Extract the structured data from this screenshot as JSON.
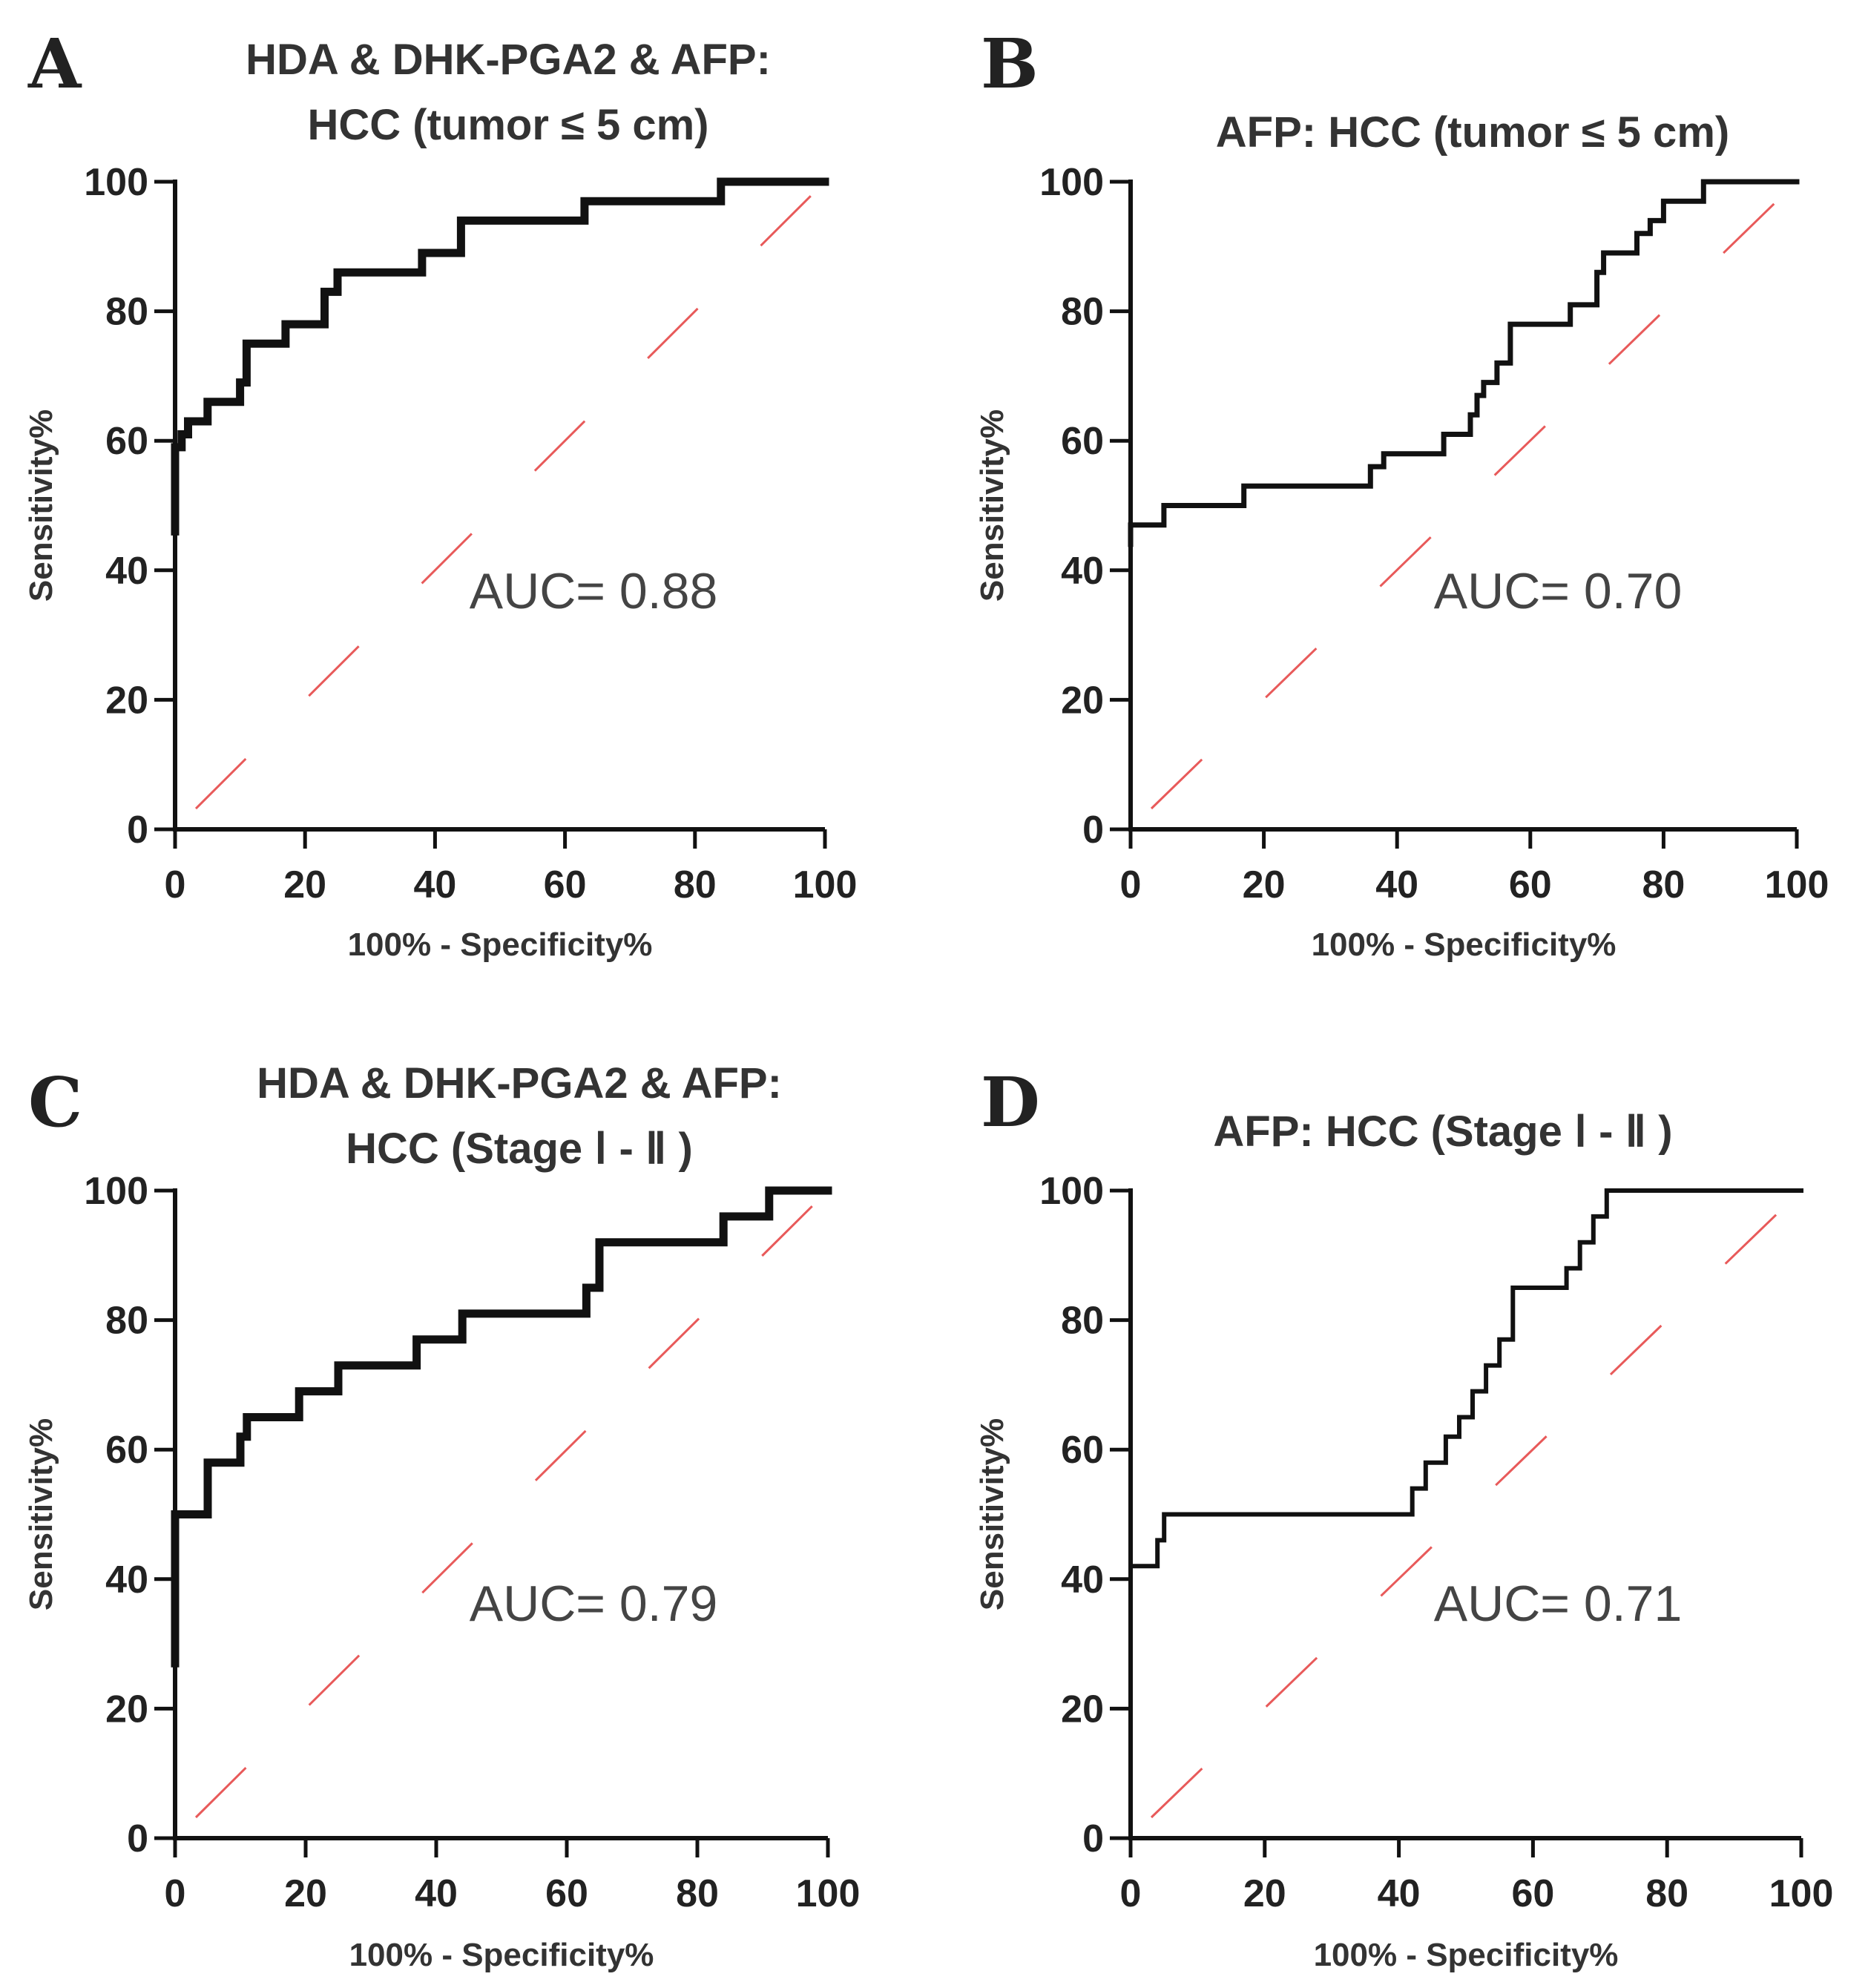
{
  "figure": {
    "type_note": "ROC curves",
    "colors": {
      "curve": "#111111",
      "reference": "#e85a5a",
      "text": "#333333"
    }
  },
  "chart_data": [
    {
      "type": "line",
      "panel": "A",
      "title_lines": [
        "HDA & DHK-PGA2 & AFP:",
        "HCC (tumor ≤ 5 cm)"
      ],
      "xlabel": "100% - Specificity%",
      "ylabel": "Sensitivity%",
      "xlim": [
        0,
        100
      ],
      "ylim": [
        0,
        100
      ],
      "xticks": [
        0,
        20,
        40,
        60,
        80,
        100
      ],
      "yticks": [
        0,
        20,
        40,
        60,
        80,
        100
      ],
      "annotation": "AUC= 0.88",
      "auc": 0.88,
      "series": [
        {
          "name": "ROC",
          "x": [
            0,
            0,
            1,
            1,
            2,
            2,
            5,
            5,
            10,
            10,
            11,
            11,
            17,
            17,
            23,
            23,
            25,
            25,
            38,
            38,
            44,
            44,
            63,
            63,
            84,
            84,
            100
          ],
          "y": [
            46,
            59,
            59,
            61,
            61,
            63,
            63,
            66,
            66,
            69,
            69,
            75,
            75,
            78,
            78,
            83,
            83,
            86,
            86,
            89,
            89,
            94,
            94,
            97,
            97,
            100,
            100
          ]
        },
        {
          "name": "Reference",
          "x": [
            0,
            100
          ],
          "y": [
            0,
            100
          ]
        }
      ]
    },
    {
      "type": "line",
      "panel": "B",
      "title_lines": [
        "AFP: HCC (tumor ≤ 5 cm)"
      ],
      "xlabel": "100% - Specificity%",
      "ylabel": "Sensitivity%",
      "xlim": [
        0,
        100
      ],
      "ylim": [
        0,
        100
      ],
      "xticks": [
        0,
        20,
        40,
        60,
        80,
        100
      ],
      "yticks": [
        0,
        20,
        40,
        60,
        80,
        100
      ],
      "annotation": "AUC= 0.70",
      "auc": 0.7,
      "series": [
        {
          "name": "ROC",
          "x": [
            0,
            0,
            1,
            1,
            5,
            5,
            17,
            17,
            36,
            36,
            38,
            38,
            47,
            47,
            51,
            51,
            52,
            52,
            53,
            53,
            55,
            55,
            57,
            57,
            66,
            66,
            70,
            70,
            71,
            71,
            76,
            76,
            78,
            78,
            80,
            80,
            86,
            86,
            100
          ],
          "y": [
            44,
            47,
            47,
            47,
            47,
            50,
            50,
            53,
            53,
            56,
            56,
            58,
            58,
            61,
            61,
            64,
            64,
            67,
            67,
            69,
            69,
            72,
            72,
            78,
            78,
            81,
            81,
            86,
            86,
            89,
            89,
            92,
            92,
            94,
            94,
            97,
            97,
            100,
            100
          ]
        },
        {
          "name": "Reference",
          "x": [
            0,
            100
          ],
          "y": [
            0,
            100
          ]
        }
      ]
    },
    {
      "type": "line",
      "panel": "C",
      "title_lines": [
        "HDA & DHK-PGA2 & AFP:",
        "HCC (Stage Ⅰ - Ⅱ )"
      ],
      "xlabel": "100% - Specificity%",
      "ylabel": "Sensitivity%",
      "xlim": [
        0,
        100
      ],
      "ylim": [
        0,
        100
      ],
      "xticks": [
        0,
        20,
        40,
        60,
        80,
        100
      ],
      "yticks": [
        0,
        20,
        40,
        60,
        80,
        100
      ],
      "annotation": "AUC= 0.79",
      "auc": 0.79,
      "series": [
        {
          "name": "ROC",
          "x": [
            0,
            0,
            1,
            1,
            5,
            5,
            10,
            10,
            11,
            11,
            19,
            19,
            25,
            25,
            37,
            37,
            44,
            44,
            63,
            63,
            65,
            65,
            84,
            84,
            91,
            91,
            100
          ],
          "y": [
            27,
            50,
            50,
            50,
            50,
            58,
            58,
            62,
            62,
            65,
            65,
            69,
            69,
            73,
            73,
            77,
            77,
            81,
            81,
            85,
            85,
            92,
            92,
            96,
            96,
            100,
            100
          ]
        },
        {
          "name": "Reference",
          "x": [
            0,
            100
          ],
          "y": [
            0,
            100
          ]
        }
      ]
    },
    {
      "type": "line",
      "panel": "D",
      "title_lines": [
        "AFP: HCC (Stage Ⅰ - Ⅱ )"
      ],
      "xlabel": "100% - Specificity%",
      "ylabel": "Sensitivity%",
      "xlim": [
        0,
        100
      ],
      "ylim": [
        0,
        100
      ],
      "xticks": [
        0,
        20,
        40,
        60,
        80,
        100
      ],
      "yticks": [
        0,
        20,
        40,
        60,
        80,
        100
      ],
      "annotation": "AUC= 0.71",
      "auc": 0.71,
      "series": [
        {
          "name": "ROC",
          "x": [
            0,
            0,
            1,
            1,
            4,
            4,
            5,
            5,
            42,
            42,
            44,
            44,
            47,
            47,
            49,
            49,
            51,
            51,
            53,
            53,
            55,
            55,
            57,
            57,
            65,
            65,
            67,
            67,
            69,
            69,
            71,
            71,
            86,
            86,
            100
          ],
          "y": [
            38,
            42,
            42,
            42,
            42,
            46,
            46,
            50,
            50,
            54,
            54,
            58,
            58,
            62,
            62,
            65,
            65,
            69,
            69,
            73,
            73,
            77,
            77,
            85,
            85,
            88,
            88,
            92,
            92,
            96,
            96,
            100,
            100,
            100,
            100
          ]
        },
        {
          "name": "Reference",
          "x": [
            0,
            100
          ],
          "y": [
            0,
            100
          ]
        }
      ]
    }
  ]
}
